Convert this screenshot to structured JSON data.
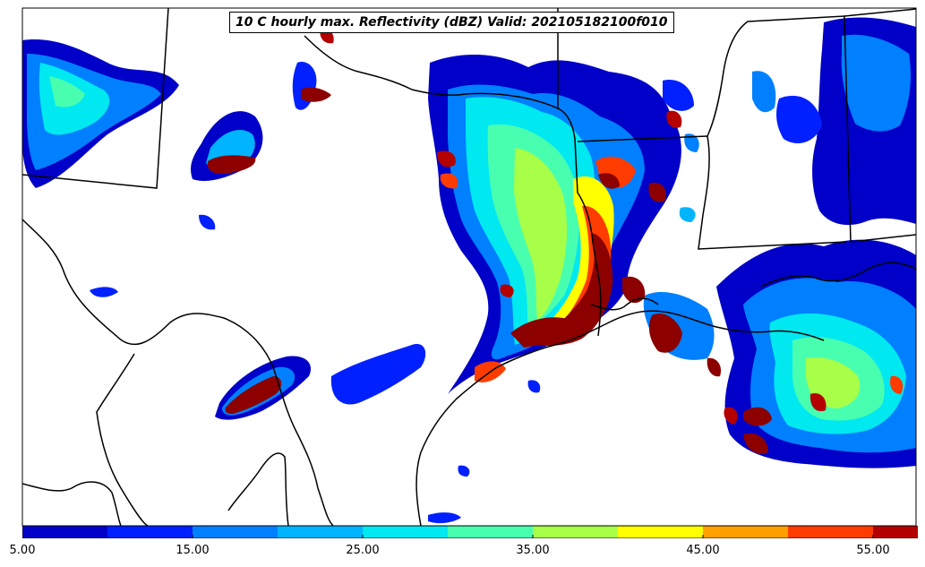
{
  "title": "10 C hourly max. Reflectivity (dBZ) Valid: 202105182100f010",
  "colorbar": {
    "ticks": [
      "5.00",
      "15.00",
      "25.00",
      "35.00",
      "45.00",
      "55.00"
    ],
    "tick_values": [
      5,
      15,
      25,
      35,
      45,
      55
    ],
    "min": 5,
    "max": 55,
    "extend": "max",
    "colors": [
      "#0000c8",
      "#0020ff",
      "#0080ff",
      "#00b4ff",
      "#00e8f0",
      "#48ffb0",
      "#a8ff48",
      "#ffff00",
      "#ffa000",
      "#ff3c00",
      "#b40000",
      "#8c0000"
    ]
  },
  "colors": {
    "border": "#000000",
    "background": "#ffffff"
  }
}
